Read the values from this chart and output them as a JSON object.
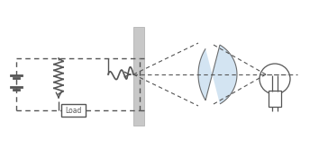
{
  "bg_color": "#ffffff",
  "line_color": "#555555",
  "gray_fill": "#c8c8c8",
  "light_blue": "#cce0f0",
  "fig_width": 3.64,
  "fig_height": 1.65,
  "dpi": 100
}
